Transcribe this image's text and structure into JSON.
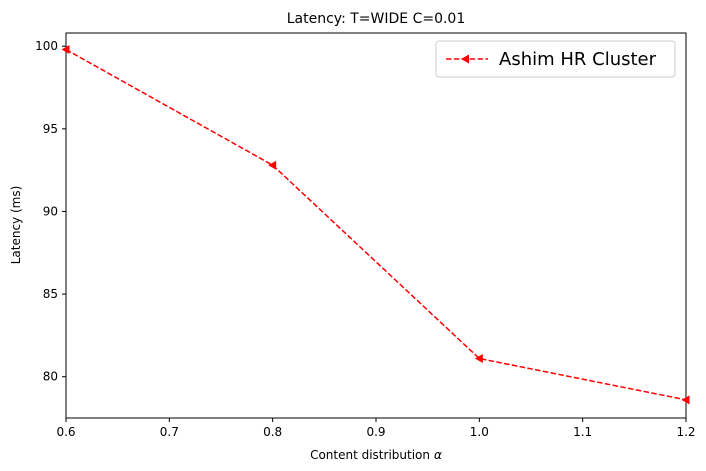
{
  "chart_data": {
    "type": "line",
    "title": "Latency: T=WIDE C=0.01",
    "xlabel": "Content distribution",
    "xlabel_symbol": "α",
    "ylabel": "Latency (ms)",
    "xlim": [
      0.6,
      1.2
    ],
    "ylim": [
      77.5,
      100.8
    ],
    "x_ticks": [
      "0.6",
      "0.7",
      "0.8",
      "0.9",
      "1.0",
      "1.1",
      "1.2"
    ],
    "y_ticks": [
      "80",
      "85",
      "90",
      "95",
      "100"
    ],
    "grid": false,
    "legend_position": "top-right",
    "series": [
      {
        "name": "Ashim HR Cluster",
        "color": "#ff0000",
        "line_style": "dashed",
        "marker": "triangle-left",
        "x": [
          0.6,
          0.8,
          1.0,
          1.2
        ],
        "y": [
          99.8,
          92.8,
          81.1,
          78.6
        ]
      }
    ]
  }
}
